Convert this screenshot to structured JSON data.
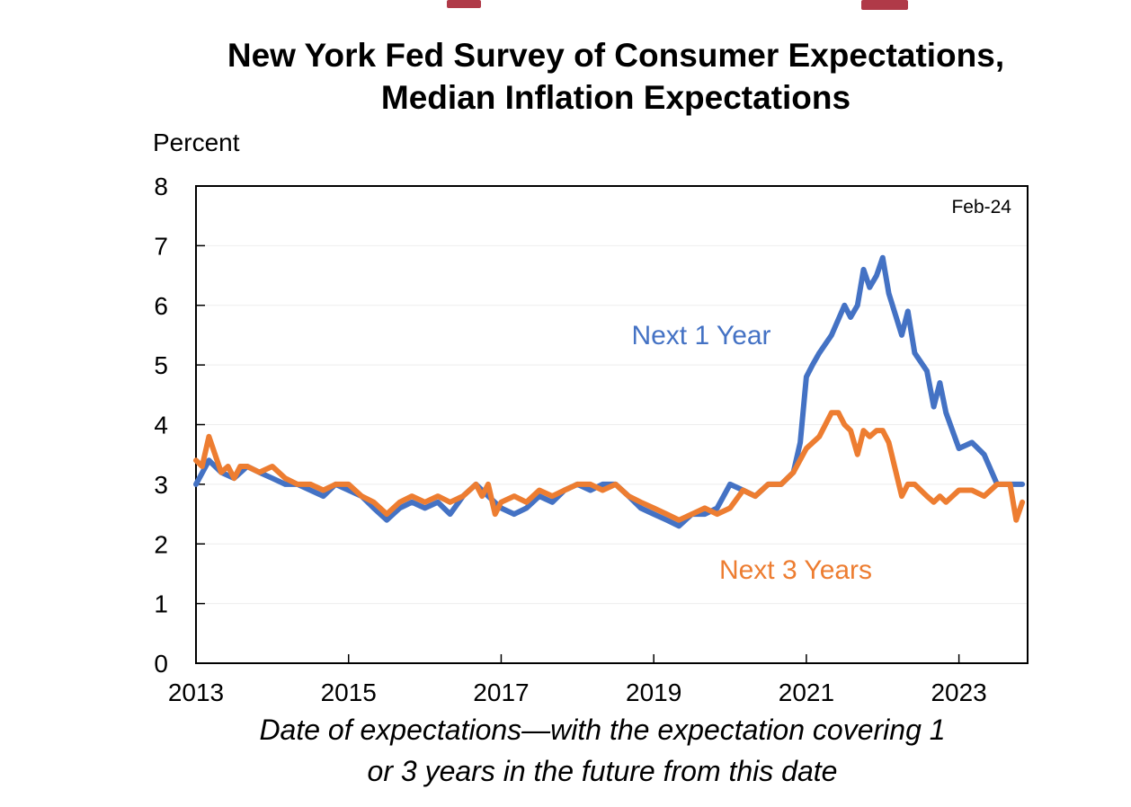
{
  "heading_fragment_color": "#b03a48",
  "chart_data": {
    "type": "line",
    "title_lines": [
      "New York Fed Survey of Consumer Expectations,",
      "Median Inflation  Expectations"
    ],
    "ylabel": "Percent",
    "xlabel_lines": [
      "Date of expectations—with the expectation covering 1",
      "or 3 years in the future from this date"
    ],
    "ylim": [
      0,
      8
    ],
    "xlim": [
      2013.0,
      2023.9
    ],
    "yticks": [
      0,
      1,
      2,
      3,
      4,
      5,
      6,
      7,
      8
    ],
    "xticks": [
      2013,
      2015,
      2017,
      2019,
      2021,
      2023
    ],
    "grid": "horizontal",
    "annotation": "Feb-24",
    "series": [
      {
        "name": "Next 1 Year",
        "color": "#4472c4",
        "x": [
          2013.0,
          2013.17,
          2013.33,
          2013.5,
          2013.67,
          2013.83,
          2014.0,
          2014.17,
          2014.33,
          2014.5,
          2014.67,
          2014.83,
          2015.0,
          2015.17,
          2015.33,
          2015.5,
          2015.67,
          2015.83,
          2016.0,
          2016.17,
          2016.33,
          2016.5,
          2016.67,
          2016.83,
          2017.0,
          2017.17,
          2017.33,
          2017.5,
          2017.67,
          2017.83,
          2018.0,
          2018.17,
          2018.33,
          2018.5,
          2018.67,
          2018.83,
          2019.0,
          2019.17,
          2019.33,
          2019.5,
          2019.67,
          2019.83,
          2020.0,
          2020.17,
          2020.33,
          2020.5,
          2020.67,
          2020.83,
          2020.92,
          2021.0,
          2021.08,
          2021.17,
          2021.33,
          2021.5,
          2021.58,
          2021.67,
          2021.75,
          2021.83,
          2021.92,
          2022.0,
          2022.08,
          2022.25,
          2022.33,
          2022.42,
          2022.58,
          2022.67,
          2022.75,
          2022.83,
          2023.0,
          2023.17,
          2023.33,
          2023.5,
          2023.67,
          2023.83
        ],
        "values": [
          3.0,
          3.4,
          3.2,
          3.1,
          3.3,
          3.2,
          3.1,
          3.0,
          3.0,
          2.9,
          2.8,
          3.0,
          2.9,
          2.8,
          2.6,
          2.4,
          2.6,
          2.7,
          2.6,
          2.7,
          2.5,
          2.8,
          3.0,
          2.8,
          2.6,
          2.5,
          2.6,
          2.8,
          2.7,
          2.9,
          3.0,
          2.9,
          3.0,
          3.0,
          2.8,
          2.6,
          2.5,
          2.4,
          2.3,
          2.5,
          2.5,
          2.6,
          3.0,
          2.9,
          2.8,
          3.0,
          3.0,
          3.2,
          3.7,
          4.8,
          5.0,
          5.2,
          5.5,
          6.0,
          5.8,
          6.0,
          6.6,
          6.3,
          6.5,
          6.8,
          6.2,
          5.5,
          5.9,
          5.2,
          4.9,
          4.3,
          4.7,
          4.2,
          3.6,
          3.7,
          3.5,
          3.0,
          3.0,
          3.0
        ]
      },
      {
        "name": "Next 3 Years",
        "color": "#ed7d31",
        "x": [
          2013.0,
          2013.08,
          2013.17,
          2013.25,
          2013.33,
          2013.42,
          2013.5,
          2013.58,
          2013.67,
          2013.83,
          2014.0,
          2014.17,
          2014.33,
          2014.5,
          2014.67,
          2014.83,
          2015.0,
          2015.17,
          2015.33,
          2015.5,
          2015.67,
          2015.83,
          2016.0,
          2016.17,
          2016.33,
          2016.5,
          2016.67,
          2016.75,
          2016.83,
          2016.92,
          2017.0,
          2017.17,
          2017.33,
          2017.5,
          2017.67,
          2017.83,
          2018.0,
          2018.17,
          2018.33,
          2018.5,
          2018.67,
          2018.83,
          2019.0,
          2019.17,
          2019.33,
          2019.5,
          2019.67,
          2019.83,
          2020.0,
          2020.17,
          2020.33,
          2020.5,
          2020.67,
          2020.83,
          2021.0,
          2021.17,
          2021.33,
          2021.42,
          2021.5,
          2021.58,
          2021.67,
          2021.75,
          2021.83,
          2021.92,
          2022.0,
          2022.08,
          2022.25,
          2022.33,
          2022.42,
          2022.58,
          2022.67,
          2022.75,
          2022.83,
          2023.0,
          2023.17,
          2023.33,
          2023.5,
          2023.67,
          2023.75,
          2023.83
        ],
        "values": [
          3.4,
          3.3,
          3.8,
          3.5,
          3.2,
          3.3,
          3.1,
          3.3,
          3.3,
          3.2,
          3.3,
          3.1,
          3.0,
          3.0,
          2.9,
          3.0,
          3.0,
          2.8,
          2.7,
          2.5,
          2.7,
          2.8,
          2.7,
          2.8,
          2.7,
          2.8,
          3.0,
          2.8,
          3.0,
          2.5,
          2.7,
          2.8,
          2.7,
          2.9,
          2.8,
          2.9,
          3.0,
          3.0,
          2.9,
          3.0,
          2.8,
          2.7,
          2.6,
          2.5,
          2.4,
          2.5,
          2.6,
          2.5,
          2.6,
          2.9,
          2.8,
          3.0,
          3.0,
          3.2,
          3.6,
          3.8,
          4.2,
          4.2,
          4.0,
          3.9,
          3.5,
          3.9,
          3.8,
          3.9,
          3.9,
          3.7,
          2.8,
          3.0,
          3.0,
          2.8,
          2.7,
          2.8,
          2.7,
          2.9,
          2.9,
          2.8,
          3.0,
          3.0,
          2.4,
          2.7
        ]
      }
    ],
    "series_labels": [
      {
        "series": "Next 1 Year",
        "text": "Next 1 Year"
      },
      {
        "series": "Next 3 Years",
        "text": "Next 3 Years"
      }
    ]
  }
}
